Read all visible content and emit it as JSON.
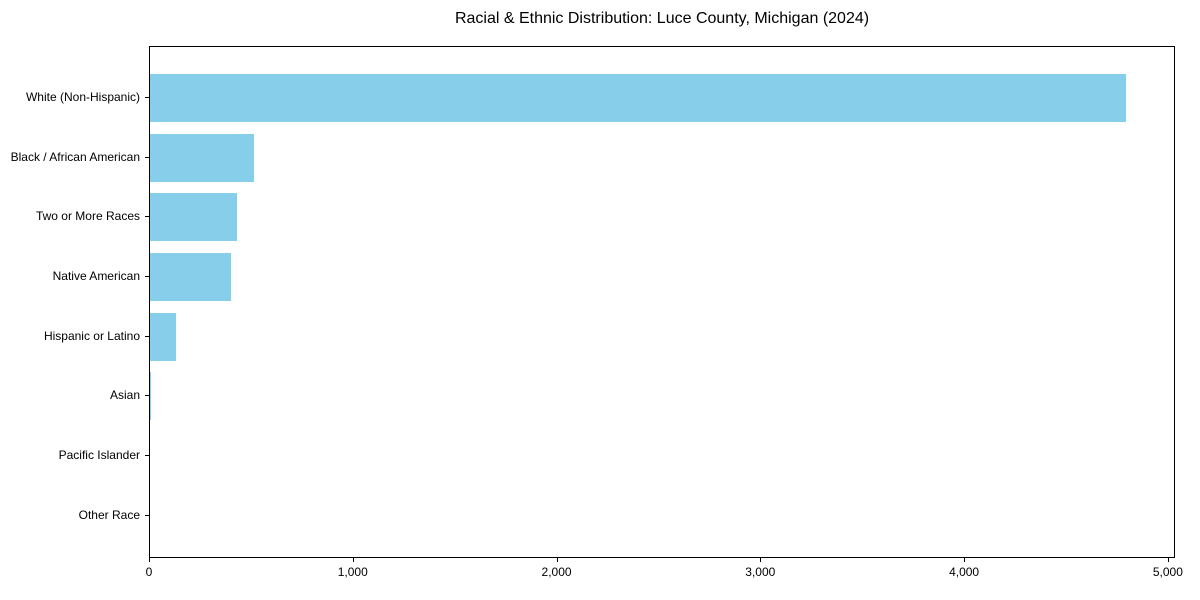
{
  "chart_data": {
    "type": "bar",
    "orientation": "horizontal",
    "title": "Racial & Ethnic Distribution: Luce County, Michigan (2024)",
    "xlabel": "",
    "ylabel": "",
    "categories": [
      "White (Non-Hispanic)",
      "Black / African American",
      "Two or More Races",
      "Native American",
      "Hispanic or Latino",
      "Asian",
      "Pacific Islander",
      "Other Race"
    ],
    "values": [
      4800,
      510,
      430,
      400,
      130,
      5,
      0,
      0
    ],
    "xlim": [
      0,
      5035
    ],
    "x_ticks": [
      {
        "value": 0,
        "label": "0"
      },
      {
        "value": 1000,
        "label": "1,000"
      },
      {
        "value": 2000,
        "label": "2,000"
      },
      {
        "value": 3000,
        "label": "3,000"
      },
      {
        "value": 4000,
        "label": "4,000"
      },
      {
        "value": 5000,
        "label": "5,000"
      }
    ],
    "bar_color": "#87CEEB",
    "axis_color": "#000000",
    "text_color": "#000000",
    "background_color": "#ffffff",
    "grid": false,
    "legend": null
  }
}
